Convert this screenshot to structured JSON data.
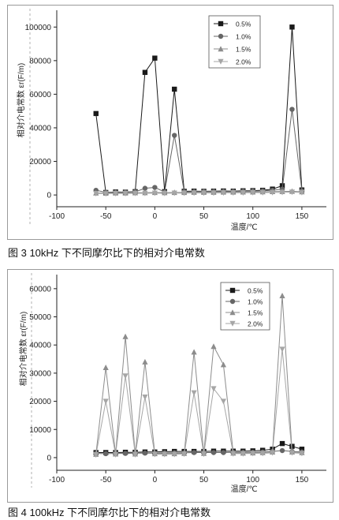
{
  "chart_data": [
    {
      "type": "line",
      "title": "",
      "xlabel": "温度/℃",
      "ylabel": "相对介电常数 εr(F/m)",
      "caption": "图 3   10kHz 下不同摩尔比下的相对介电常数",
      "xlim": [
        -100,
        175
      ],
      "ylim": [
        -7000,
        110000
      ],
      "xticks": [
        -100,
        -50,
        0,
        50,
        100,
        150
      ],
      "yticks": [
        0,
        20000,
        40000,
        60000,
        80000,
        100000
      ],
      "legend_position": "top-right",
      "grid": false,
      "x": [
        -60,
        -50,
        -40,
        -30,
        -20,
        -10,
        0,
        10,
        20,
        30,
        40,
        50,
        60,
        70,
        80,
        90,
        100,
        110,
        120,
        130,
        140,
        150
      ],
      "series": [
        {
          "name": "0.5%",
          "marker": "square",
          "color": "#1a1a1a",
          "values": [
            48500,
            1500,
            1800,
            1700,
            2000,
            73000,
            81500,
            2000,
            63000,
            2200,
            2300,
            2200,
            2300,
            2400,
            2300,
            2500,
            2600,
            2800,
            3500,
            5500,
            100000,
            3000
          ]
        },
        {
          "name": "1.0%",
          "marker": "circle",
          "color": "#666666",
          "values": [
            2800,
            1600,
            1600,
            1700,
            1900,
            4000,
            4500,
            1800,
            35500,
            1900,
            2000,
            2000,
            2100,
            2100,
            2100,
            2200,
            2300,
            2500,
            2800,
            3500,
            51000,
            2500
          ]
        },
        {
          "name": "1.5%",
          "marker": "triangle-up",
          "color": "#8c8c8c",
          "values": [
            1200,
            1100,
            1200,
            1200,
            1300,
            1400,
            1500,
            1400,
            1500,
            1500,
            1600,
            1600,
            1600,
            1700,
            1700,
            1800,
            1800,
            1900,
            2000,
            2100,
            2200,
            1900
          ]
        },
        {
          "name": "2.0%",
          "marker": "triangle-down",
          "color": "#a6a6a6",
          "values": [
            900,
            800,
            900,
            900,
            1000,
            1000,
            1100,
            1000,
            1100,
            1100,
            1200,
            1200,
            1200,
            1300,
            1300,
            1300,
            1400,
            1400,
            1500,
            1600,
            1700,
            1500
          ]
        }
      ]
    },
    {
      "type": "line",
      "title": "",
      "xlabel": "温度/℃",
      "ylabel": "相对介电常数 εr(F/m)",
      "caption": "图 4    100kHz 下不同摩尔比下的相对介电常数",
      "xlim": [
        -100,
        175
      ],
      "ylim": [
        -4500,
        65000
      ],
      "xticks": [
        -100,
        -50,
        0,
        50,
        100,
        150
      ],
      "yticks": [
        0,
        10000,
        20000,
        30000,
        40000,
        50000,
        60000
      ],
      "legend_position": "top-right",
      "grid": false,
      "x": [
        -60,
        -50,
        -40,
        -30,
        -20,
        -10,
        0,
        10,
        20,
        30,
        40,
        50,
        60,
        70,
        80,
        90,
        100,
        110,
        120,
        130,
        140,
        150
      ],
      "series": [
        {
          "name": "0.5%",
          "marker": "square",
          "color": "#1a1a1a",
          "values": [
            1800,
            1800,
            1800,
            1900,
            1900,
            2000,
            2000,
            2100,
            2200,
            2200,
            2200,
            2200,
            2300,
            2300,
            2300,
            2300,
            2400,
            2600,
            3000,
            5000,
            4000,
            3000
          ]
        },
        {
          "name": "1.0%",
          "marker": "circle",
          "color": "#666666",
          "values": [
            1500,
            1400,
            1500,
            1500,
            1600,
            1600,
            1600,
            1700,
            1700,
            1700,
            1800,
            1800,
            1800,
            1800,
            1900,
            1900,
            1900,
            2000,
            2200,
            2500,
            2200,
            2000
          ]
        },
        {
          "name": "1.5%",
          "marker": "triangle-up",
          "color": "#8c8c8c",
          "values": [
            1200,
            32000,
            1300,
            43000,
            1300,
            34000,
            1400,
            1400,
            1400,
            1500,
            37500,
            1500,
            39500,
            33000,
            1600,
            1600,
            1700,
            1800,
            2000,
            57500,
            2000,
            1800
          ]
        },
        {
          "name": "2.0%",
          "marker": "triangle-down",
          "color": "#a6a6a6",
          "values": [
            1000,
            20000,
            1100,
            29000,
            1100,
            21500,
            1200,
            1200,
            1200,
            1300,
            23000,
            1300,
            24500,
            20000,
            1400,
            1400,
            1500,
            1500,
            1700,
            38500,
            1700,
            1500
          ]
        }
      ]
    }
  ]
}
